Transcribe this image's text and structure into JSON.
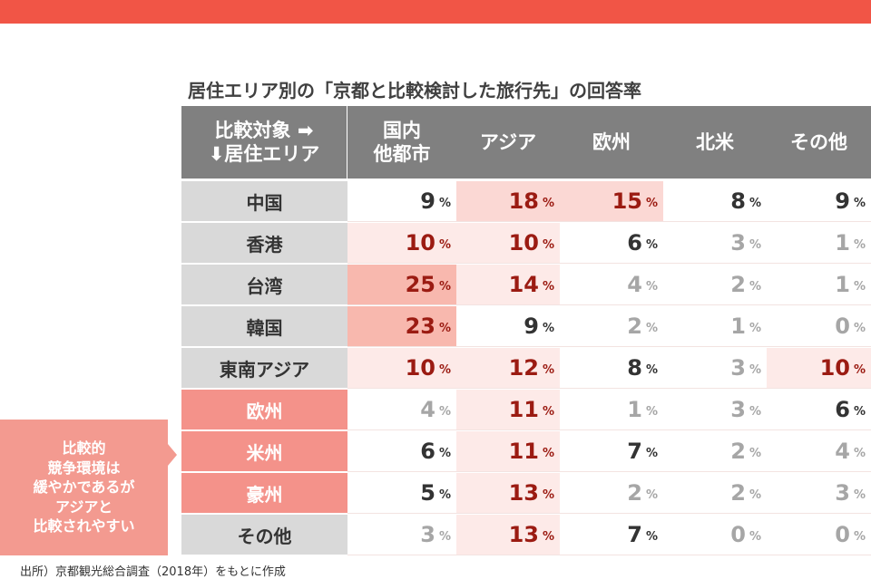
{
  "title": "居住エリア別の「京都と比較検討した旅行先」の回答率",
  "chart_data": {
    "type": "table",
    "title": "居住エリア別の「京都と比較検討した旅行先」の回答率",
    "corner_header": [
      "比較対象 ➡",
      "⬇居住エリア"
    ],
    "columns": [
      "国内\n他都市",
      "アジア",
      "欧州",
      "北米",
      "その他"
    ],
    "unit": "%",
    "rows": [
      {
        "label": "中国",
        "group": "asia",
        "values": [
          9,
          18,
          15,
          8,
          9
        ]
      },
      {
        "label": "香港",
        "group": "asia",
        "values": [
          10,
          10,
          6,
          3,
          1
        ]
      },
      {
        "label": "台湾",
        "group": "asia",
        "values": [
          25,
          14,
          4,
          2,
          1
        ]
      },
      {
        "label": "韓国",
        "group": "asia",
        "values": [
          23,
          9,
          2,
          1,
          0
        ]
      },
      {
        "label": "東南アジア",
        "group": "asia",
        "values": [
          10,
          12,
          8,
          3,
          10
        ]
      },
      {
        "label": "欧州",
        "group": "western",
        "values": [
          4,
          11,
          1,
          3,
          6
        ]
      },
      {
        "label": "米州",
        "group": "western",
        "values": [
          6,
          11,
          7,
          2,
          4
        ]
      },
      {
        "label": "豪州",
        "group": "western",
        "values": [
          5,
          13,
          2,
          2,
          3
        ]
      },
      {
        "label": "その他",
        "group": "other",
        "values": [
          3,
          13,
          7,
          0,
          0
        ]
      }
    ]
  },
  "callout": "比較的\n競争環境は\n緩やかであるが\nアジアと\n比較されやすい",
  "source": "出所）京都観光総合調査（2018年）をもとに作成",
  "colors": {
    "banner": "#f15546",
    "header": "#808080",
    "row_gray": "#d9d9d9",
    "row_red": "#f4928a",
    "shade_high": "#f8b8ae",
    "shade_mid": "#fbd8d4",
    "shade_low": "#fdeae8",
    "text_high": "#9b1b12",
    "text_mid": "#333333",
    "text_low": "#a6a6a6"
  }
}
